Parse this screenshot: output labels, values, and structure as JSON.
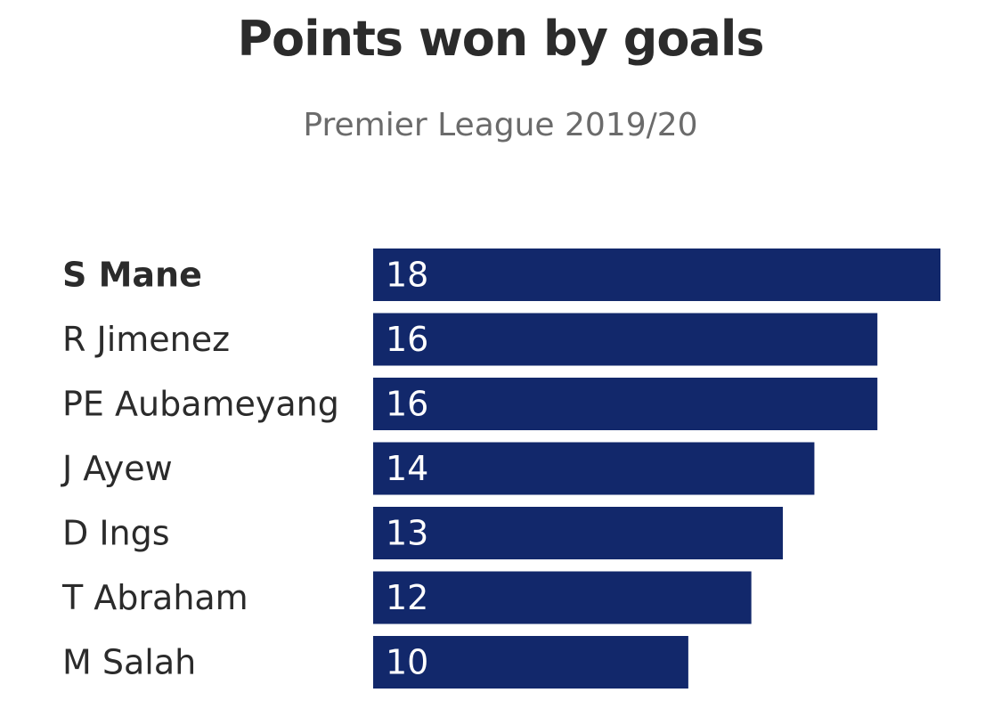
{
  "title": "Points won by goals",
  "subtitle": "Premier League 2019/20",
  "colors": {
    "bar": "#12286b",
    "text": "#2b2b2b",
    "subtitle": "#6b6b6b",
    "value_text": "#ffffff"
  },
  "chart_data": {
    "type": "bar",
    "orientation": "horizontal",
    "title": "Points won by goals",
    "subtitle": "Premier League 2019/20",
    "categories": [
      "S Mane",
      "R Jimenez",
      "PE Aubameyang",
      "J Ayew",
      "D Ings",
      "T Abraham",
      "M Salah"
    ],
    "values": [
      18,
      16,
      16,
      14,
      13,
      12,
      10
    ],
    "highlighted": "S Mane",
    "xlim": [
      0,
      18
    ],
    "grid": false,
    "legend": false,
    "data_labels": true
  }
}
